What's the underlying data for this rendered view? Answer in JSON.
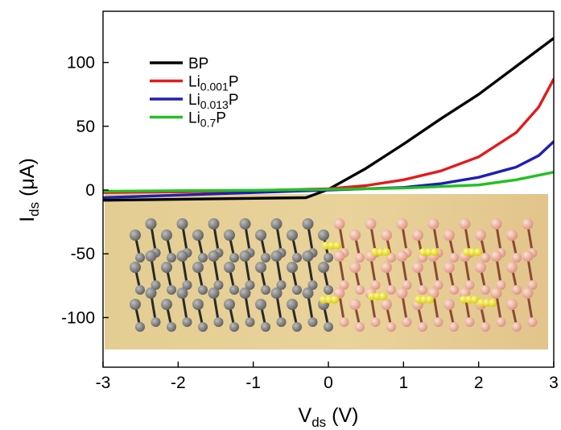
{
  "chart_data": {
    "type": "line",
    "title": "",
    "xlabel": {
      "main": "V",
      "sub": "ds",
      "unit": " (V)"
    },
    "ylabel": {
      "main": "I",
      "sub": "ds",
      "unit": " (μA)"
    },
    "xlim": [
      -3,
      3
    ],
    "ylim": [
      -140,
      140
    ],
    "xticks": [
      -3,
      -2,
      -1,
      0,
      1,
      2,
      3
    ],
    "yticks": [
      -100,
      -50,
      0,
      50,
      100
    ],
    "xtick_labels": [
      "-3",
      "-2",
      "-1",
      "0",
      "1",
      "2",
      "3"
    ],
    "ytick_labels": [
      "-100",
      "-50",
      "0",
      "50",
      "100"
    ],
    "grid": false,
    "legend": "top-left",
    "inset": "ball-and-stick image of black phosphorus layers (grey) and lithium-intercalated layers (salmon) with yellow Li atoms",
    "series": [
      {
        "name": "BP",
        "label_main": "BP",
        "label_sub": "",
        "label_tail": "",
        "color": "#000000",
        "x": [
          -3.0,
          -0.3,
          0.0,
          0.5,
          1.0,
          1.5,
          2.0,
          2.5,
          3.0
        ],
        "y": [
          -8.0,
          -6.0,
          0.5,
          17.0,
          36.0,
          56.0,
          75.0,
          97.0,
          119.0
        ]
      },
      {
        "name": "Li0.001P",
        "label_main": "Li",
        "label_sub": "0.001",
        "label_tail": "P",
        "color": "#e41a1c",
        "x": [
          -3.0,
          -2.0,
          -1.0,
          0.0,
          0.5,
          1.0,
          1.5,
          2.0,
          2.5,
          2.8,
          3.0
        ],
        "y": [
          -2.0,
          -1.5,
          -0.5,
          1.0,
          3.5,
          8.0,
          15.0,
          26.0,
          45.0,
          65.0,
          87.0
        ]
      },
      {
        "name": "Li0.013P",
        "label_main": "Li",
        "label_sub": "0.013",
        "label_tail": "P",
        "color": "#1f1fb4",
        "x": [
          -3.0,
          -2.0,
          -1.0,
          0.0,
          1.0,
          1.5,
          2.0,
          2.5,
          2.8,
          3.0
        ],
        "y": [
          -6.0,
          -4.0,
          -2.0,
          0.0,
          2.0,
          5.0,
          10.0,
          18.0,
          27.0,
          38.0
        ]
      },
      {
        "name": "Li0.7P",
        "label_main": "Li",
        "label_sub": "0.7",
        "label_tail": "P",
        "color": "#22c022",
        "x": [
          -3.0,
          -2.0,
          -1.0,
          0.0,
          1.0,
          2.0,
          2.5,
          3.0
        ],
        "y": [
          -1.0,
          -0.5,
          -0.2,
          0.5,
          1.5,
          4.0,
          8.0,
          14.0
        ]
      }
    ]
  }
}
